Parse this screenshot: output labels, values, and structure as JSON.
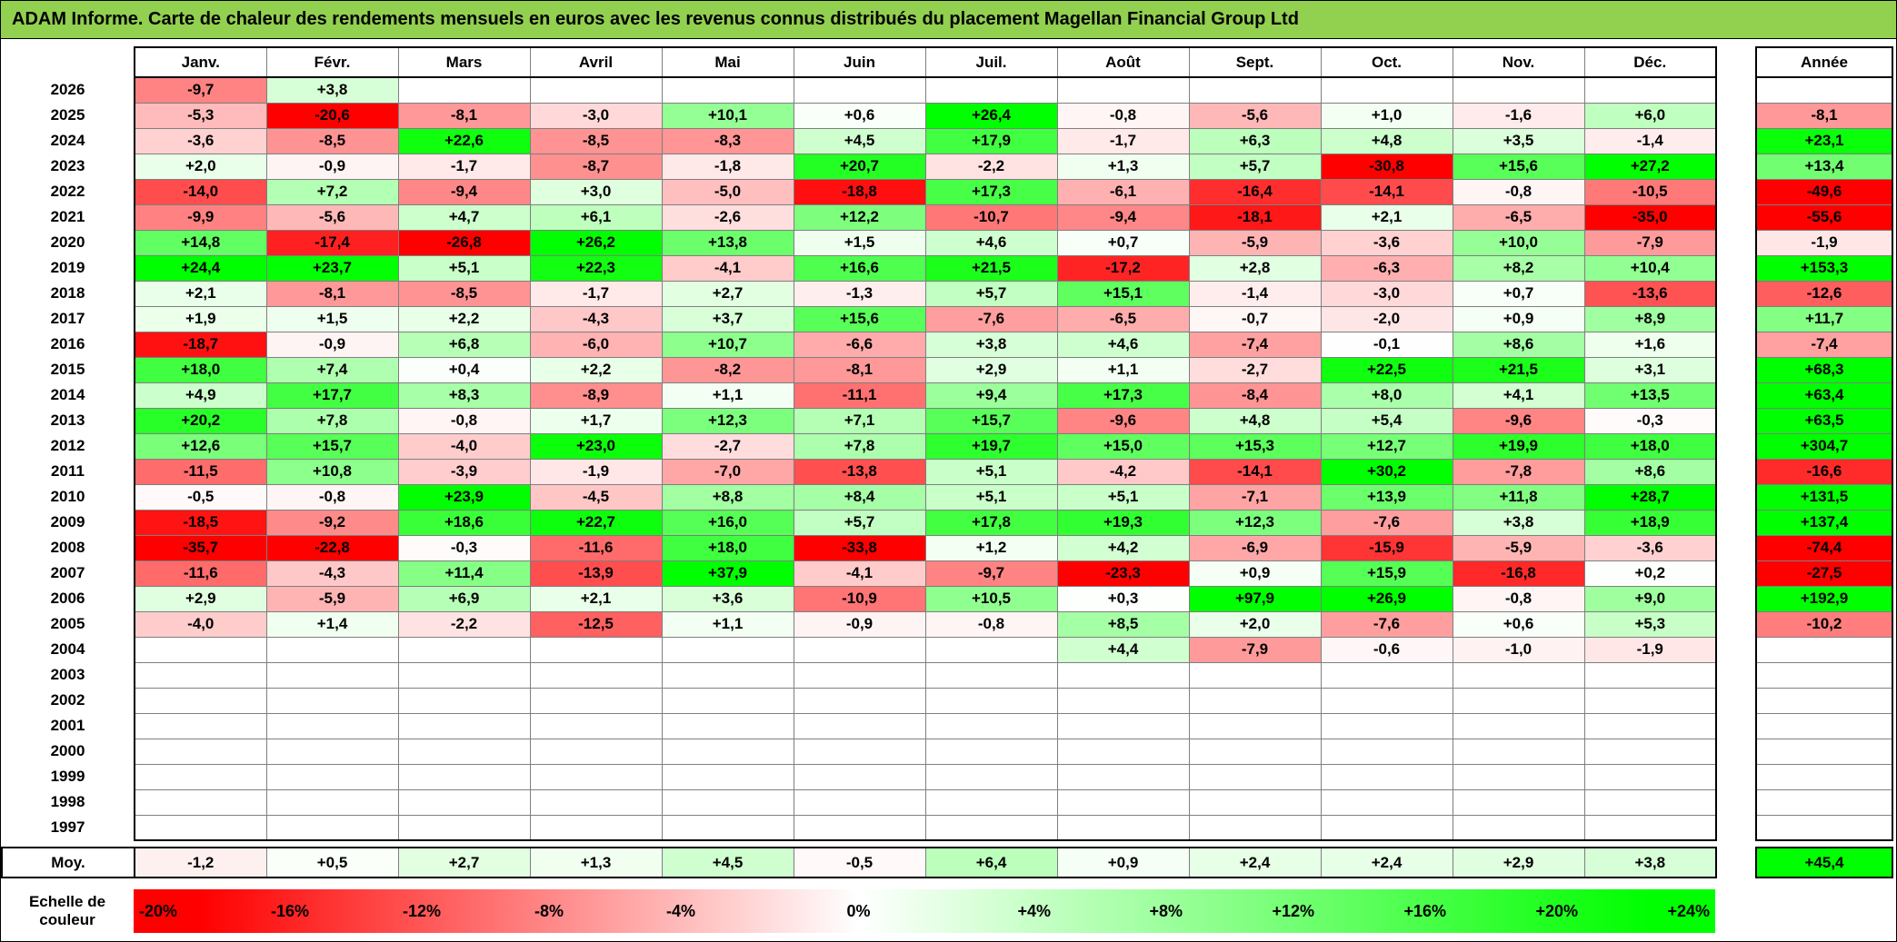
{
  "title": "ADAM Informe. Carte de chaleur des rendements mensuels en euros avec les revenus connus distribués du placement Magellan Financial Group Ltd",
  "colors": {
    "title_bg": "#92D050",
    "negative_saturation": "#FF0000",
    "positive_saturation": "#00FF00",
    "zero": "#FFFFFF",
    "grid_line": "#7f7f7f"
  },
  "chart_data": {
    "type": "heatmap",
    "title": "ADAM Informe. Carte de chaleur des rendements mensuels en euros avec les revenus connus distribués du placement Magellan Financial Group Ltd",
    "columns": [
      "Janv.",
      "Févr.",
      "Mars",
      "Avril",
      "Mai",
      "Juin",
      "Juil.",
      "Août",
      "Sept.",
      "Oct.",
      "Nov.",
      "Déc."
    ],
    "annual_header": "Année",
    "color_scale_min": -20,
    "color_scale_max": 24,
    "rows": [
      {
        "year": "2026",
        "monthly": [
          "-9,7",
          "+3,8",
          "",
          "",
          "",
          "",
          "",
          "",
          "",
          "",
          "",
          ""
        ],
        "annual": ""
      },
      {
        "year": "2025",
        "monthly": [
          "-5,3",
          "-20,6",
          "-8,1",
          "-3,0",
          "+10,1",
          "+0,6",
          "+26,4",
          "-0,8",
          "-5,6",
          "+1,0",
          "-1,6",
          "+6,0"
        ],
        "annual": "-8,1"
      },
      {
        "year": "2024",
        "monthly": [
          "-3,6",
          "-8,5",
          "+22,6",
          "-8,5",
          "-8,3",
          "+4,5",
          "+17,9",
          "-1,7",
          "+6,3",
          "+4,8",
          "+3,5",
          "-1,4"
        ],
        "annual": "+23,1"
      },
      {
        "year": "2023",
        "monthly": [
          "+2,0",
          "-0,9",
          "-1,7",
          "-8,7",
          "-1,8",
          "+20,7",
          "-2,2",
          "+1,3",
          "+5,7",
          "-30,8",
          "+15,6",
          "+27,2"
        ],
        "annual": "+13,4"
      },
      {
        "year": "2022",
        "monthly": [
          "-14,0",
          "+7,2",
          "-9,4",
          "+3,0",
          "-5,0",
          "-18,8",
          "+17,3",
          "-6,1",
          "-16,4",
          "-14,1",
          "-0,8",
          "-10,5"
        ],
        "annual": "-49,6"
      },
      {
        "year": "2021",
        "monthly": [
          "-9,9",
          "-5,6",
          "+4,7",
          "+6,1",
          "-2,6",
          "+12,2",
          "-10,7",
          "-9,4",
          "-18,1",
          "+2,1",
          "-6,5",
          "-35,0"
        ],
        "annual": "-55,6"
      },
      {
        "year": "2020",
        "monthly": [
          "+14,8",
          "-17,4",
          "-26,8",
          "+26,2",
          "+13,8",
          "+1,5",
          "+4,6",
          "+0,7",
          "-5,9",
          "-3,6",
          "+10,0",
          "-7,9"
        ],
        "annual": "-1,9"
      },
      {
        "year": "2019",
        "monthly": [
          "+24,4",
          "+23,7",
          "+5,1",
          "+22,3",
          "-4,1",
          "+16,6",
          "+21,5",
          "-17,2",
          "+2,8",
          "-6,3",
          "+8,2",
          "+10,4"
        ],
        "annual": "+153,3"
      },
      {
        "year": "2018",
        "monthly": [
          "+2,1",
          "-8,1",
          "-8,5",
          "-1,7",
          "+2,7",
          "-1,3",
          "+5,7",
          "+15,1",
          "-1,4",
          "-3,0",
          "+0,7",
          "-13,6"
        ],
        "annual": "-12,6"
      },
      {
        "year": "2017",
        "monthly": [
          "+1,9",
          "+1,5",
          "+2,2",
          "-4,3",
          "+3,7",
          "+15,6",
          "-7,6",
          "-6,5",
          "-0,7",
          "-2,0",
          "+0,9",
          "+8,9"
        ],
        "annual": "+11,7"
      },
      {
        "year": "2016",
        "monthly": [
          "-18,7",
          "-0,9",
          "+6,8",
          "-6,0",
          "+10,7",
          "-6,6",
          "+3,8",
          "+4,6",
          "-7,4",
          "-0,1",
          "+8,6",
          "+1,6"
        ],
        "annual": "-7,4"
      },
      {
        "year": "2015",
        "monthly": [
          "+18,0",
          "+7,4",
          "+0,4",
          "+2,2",
          "-8,2",
          "-8,1",
          "+2,9",
          "+1,1",
          "-2,7",
          "+22,5",
          "+21,5",
          "+3,1"
        ],
        "annual": "+68,3"
      },
      {
        "year": "2014",
        "monthly": [
          "+4,9",
          "+17,7",
          "+8,3",
          "-8,9",
          "+1,1",
          "-11,1",
          "+9,4",
          "+17,3",
          "-8,4",
          "+8,0",
          "+4,1",
          "+13,5"
        ],
        "annual": "+63,4"
      },
      {
        "year": "2013",
        "monthly": [
          "+20,2",
          "+7,8",
          "-0,8",
          "+1,7",
          "+12,3",
          "+7,1",
          "+15,7",
          "-9,6",
          "+4,8",
          "+5,4",
          "-9,6",
          "-0,3"
        ],
        "annual": "+63,5"
      },
      {
        "year": "2012",
        "monthly": [
          "+12,6",
          "+15,7",
          "-4,0",
          "+23,0",
          "-2,7",
          "+7,8",
          "+19,7",
          "+15,0",
          "+15,3",
          "+12,7",
          "+19,9",
          "+18,0"
        ],
        "annual": "+304,7"
      },
      {
        "year": "2011",
        "monthly": [
          "-11,5",
          "+10,8",
          "-3,9",
          "-1,9",
          "-7,0",
          "-13,8",
          "+5,1",
          "-4,2",
          "-14,1",
          "+30,2",
          "-7,8",
          "+8,6"
        ],
        "annual": "-16,6"
      },
      {
        "year": "2010",
        "monthly": [
          "-0,5",
          "-0,8",
          "+23,9",
          "-4,5",
          "+8,8",
          "+8,4",
          "+5,1",
          "+5,1",
          "-7,1",
          "+13,9",
          "+11,8",
          "+28,7"
        ],
        "annual": "+131,5"
      },
      {
        "year": "2009",
        "monthly": [
          "-18,5",
          "-9,2",
          "+18,6",
          "+22,7",
          "+16,0",
          "+5,7",
          "+17,8",
          "+19,3",
          "+12,3",
          "-7,6",
          "+3,8",
          "+18,9"
        ],
        "annual": "+137,4"
      },
      {
        "year": "2008",
        "monthly": [
          "-35,7",
          "-22,8",
          "-0,3",
          "-11,6",
          "+18,0",
          "-33,8",
          "+1,2",
          "+4,2",
          "-6,9",
          "-15,9",
          "-5,9",
          "-3,6"
        ],
        "annual": "-74,4"
      },
      {
        "year": "2007",
        "monthly": [
          "-11,6",
          "-4,3",
          "+11,4",
          "-13,9",
          "+37,9",
          "-4,1",
          "-9,7",
          "-23,3",
          "+0,9",
          "+15,9",
          "-16,8",
          "+0,2"
        ],
        "annual": "-27,5"
      },
      {
        "year": "2006",
        "monthly": [
          "+2,9",
          "-5,9",
          "+6,9",
          "+2,1",
          "+3,6",
          "-10,9",
          "+10,5",
          "+0,3",
          "+97,9",
          "+26,9",
          "-0,8",
          "+9,0"
        ],
        "annual": "+192,9"
      },
      {
        "year": "2005",
        "monthly": [
          "-4,0",
          "+1,4",
          "-2,2",
          "-12,5",
          "+1,1",
          "-0,9",
          "-0,8",
          "+8,5",
          "+2,0",
          "-7,6",
          "+0,6",
          "+5,3"
        ],
        "annual": "-10,2"
      },
      {
        "year": "2004",
        "monthly": [
          "",
          "",
          "",
          "",
          "",
          "",
          "",
          "+4,4",
          "-7,9",
          "-0,6",
          "-1,0",
          "-1,9"
        ],
        "annual": ""
      },
      {
        "year": "2003",
        "monthly": [
          "",
          "",
          "",
          "",
          "",
          "",
          "",
          "",
          "",
          "",
          "",
          ""
        ],
        "annual": ""
      },
      {
        "year": "2002",
        "monthly": [
          "",
          "",
          "",
          "",
          "",
          "",
          "",
          "",
          "",
          "",
          "",
          ""
        ],
        "annual": ""
      },
      {
        "year": "2001",
        "monthly": [
          "",
          "",
          "",
          "",
          "",
          "",
          "",
          "",
          "",
          "",
          "",
          ""
        ],
        "annual": ""
      },
      {
        "year": "2000",
        "monthly": [
          "",
          "",
          "",
          "",
          "",
          "",
          "",
          "",
          "",
          "",
          "",
          ""
        ],
        "annual": ""
      },
      {
        "year": "1999",
        "monthly": [
          "",
          "",
          "",
          "",
          "",
          "",
          "",
          "",
          "",
          "",
          "",
          ""
        ],
        "annual": ""
      },
      {
        "year": "1998",
        "monthly": [
          "",
          "",
          "",
          "",
          "",
          "",
          "",
          "",
          "",
          "",
          "",
          ""
        ],
        "annual": ""
      },
      {
        "year": "1997",
        "monthly": [
          "",
          "",
          "",
          "",
          "",
          "",
          "",
          "",
          "",
          "",
          "",
          ""
        ],
        "annual": ""
      }
    ],
    "average": {
      "label": "Moy.",
      "monthly": [
        "-1,2",
        "+0,5",
        "+2,7",
        "+1,3",
        "+4,5",
        "-0,5",
        "+6,4",
        "+0,9",
        "+2,4",
        "+2,4",
        "+2,9",
        "+3,8"
      ],
      "annual": "+45,4"
    },
    "color_scale": {
      "label_line1": "Echelle de",
      "label_line2": "couleur",
      "ticks": [
        "-20%",
        "-16%",
        "-12%",
        "-8%",
        "-4%",
        "0%",
        "+4%",
        "+8%",
        "+12%",
        "+16%",
        "+20%",
        "+24%"
      ],
      "tick_values": [
        -20,
        -16,
        -12,
        -8,
        -4,
        0,
        4,
        8,
        12,
        16,
        20,
        24
      ]
    }
  }
}
